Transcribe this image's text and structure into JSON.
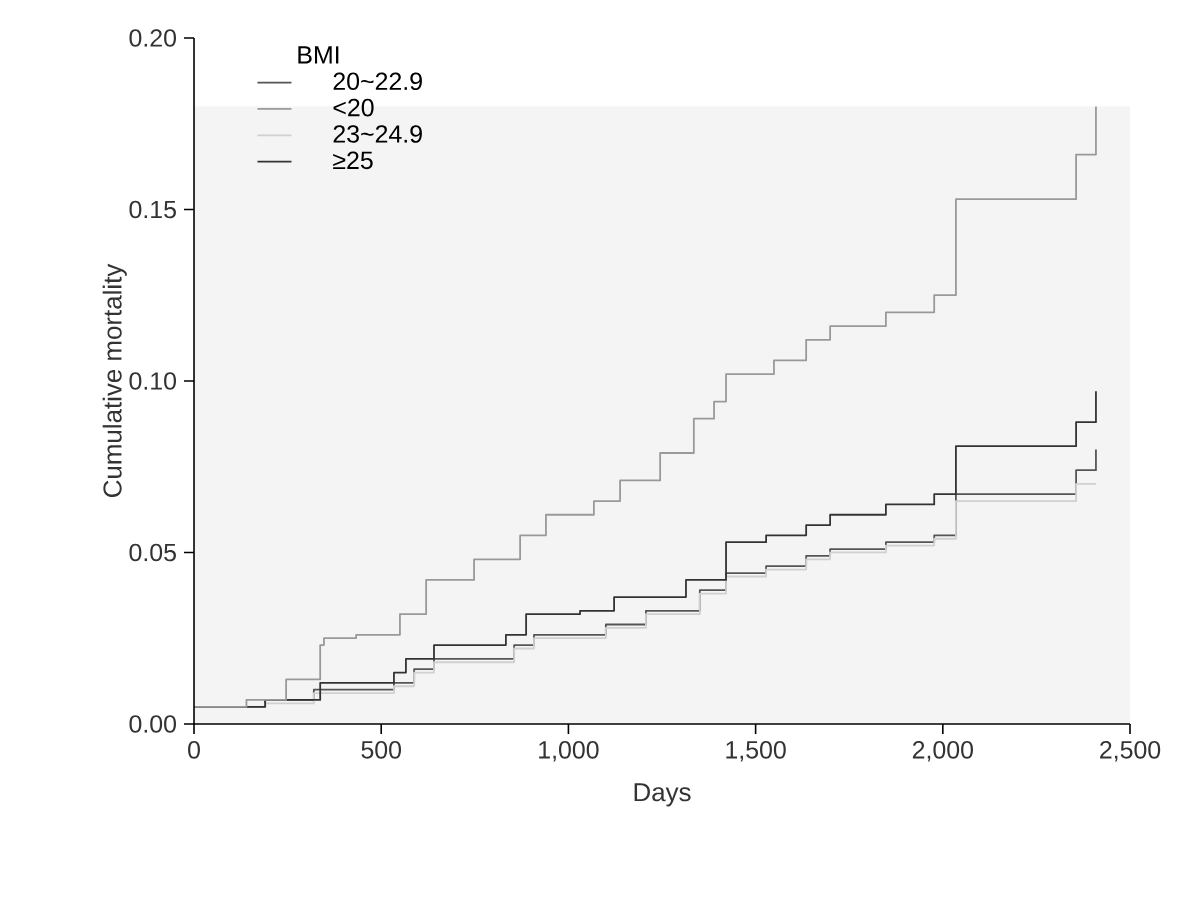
{
  "chart_data": {
    "type": "step",
    "xlabel": "Days",
    "ylabel": "Cumulative mortality",
    "legend_title": "BMI",
    "legend": "top left",
    "grid": false,
    "xlim": [
      0,
      2500
    ],
    "xticks": [
      0,
      {
        "value": 500,
        "label": "500"
      },
      {
        "value": 1000,
        "label": "1,000"
      },
      {
        "value": 1500,
        "label": "1,500"
      },
      {
        "value": 2000,
        "label": "2,000"
      },
      {
        "value": 2500,
        "label": "2,500"
      }
    ],
    "ylim": [
      0,
      0.2
    ],
    "yticks": [
      {
        "value": 0,
        "label": "0.00"
      },
      {
        "value": 0.05,
        "label": "0.05"
      },
      {
        "value": 0.1,
        "label": "0.10"
      },
      {
        "value": 0.15,
        "label": "0.15"
      },
      {
        "value": 0.2,
        "label": "0.20"
      }
    ],
    "bands": [
      {
        "axis": "y",
        "from": 0,
        "to": 0.18,
        "color": "#f4f4f4"
      }
    ],
    "series": [
      {
        "name": "20~22.9",
        "color": "#555555",
        "x": [
          0,
          190,
          320,
          534,
          588,
          641,
          855,
          908,
          1100,
          1207,
          1351,
          1421,
          1528,
          1635,
          1699,
          1848,
          1977,
          2035,
          2356,
          2409,
          2409
        ],
        "values": [
          0.005,
          0.007,
          0.01,
          0.012,
          0.016,
          0.019,
          0.023,
          0.026,
          0.029,
          0.033,
          0.039,
          0.044,
          0.046,
          0.049,
          0.051,
          0.053,
          0.055,
          0.067,
          0.074,
          0.074,
          0.08
        ]
      },
      {
        "name": "<20",
        "color": "#999999",
        "x": [
          0,
          140,
          246,
          337,
          347,
          433,
          550,
          620,
          748,
          871,
          940,
          1068,
          1138,
          1245,
          1335,
          1389,
          1421,
          1549,
          1635,
          1699,
          1848,
          1977,
          2035,
          2356,
          2409,
          2409
        ],
        "values": [
          0.005,
          0.007,
          0.013,
          0.023,
          0.025,
          0.026,
          0.032,
          0.042,
          0.048,
          0.055,
          0.061,
          0.065,
          0.071,
          0.079,
          0.089,
          0.094,
          0.102,
          0.106,
          0.112,
          0.116,
          0.12,
          0.125,
          0.153,
          0.166,
          0.166,
          0.18
        ]
      },
      {
        "name": "23~24.9",
        "color": "#d0d0d0",
        "x": [
          0,
          190,
          320,
          534,
          588,
          641,
          855,
          908,
          1100,
          1207,
          1351,
          1421,
          1528,
          1635,
          1699,
          1848,
          1977,
          2035,
          2356,
          2409
        ],
        "values": [
          0.005,
          0.006,
          0.009,
          0.011,
          0.015,
          0.018,
          0.022,
          0.025,
          0.028,
          0.032,
          0.038,
          0.043,
          0.045,
          0.048,
          0.05,
          0.052,
          0.054,
          0.065,
          0.07,
          0.07
        ]
      },
      {
        "name": "≥25",
        "color": "#333333",
        "x": [
          0,
          190,
          337,
          534,
          566,
          641,
          833,
          887,
          1031,
          1122,
          1314,
          1421,
          1528,
          1635,
          1699,
          1848,
          1977,
          2035,
          2356,
          2409,
          2409
        ],
        "values": [
          0.005,
          0.007,
          0.012,
          0.015,
          0.019,
          0.023,
          0.026,
          0.032,
          0.033,
          0.037,
          0.042,
          0.053,
          0.055,
          0.058,
          0.061,
          0.064,
          0.067,
          0.081,
          0.088,
          0.088,
          0.097
        ]
      }
    ]
  }
}
